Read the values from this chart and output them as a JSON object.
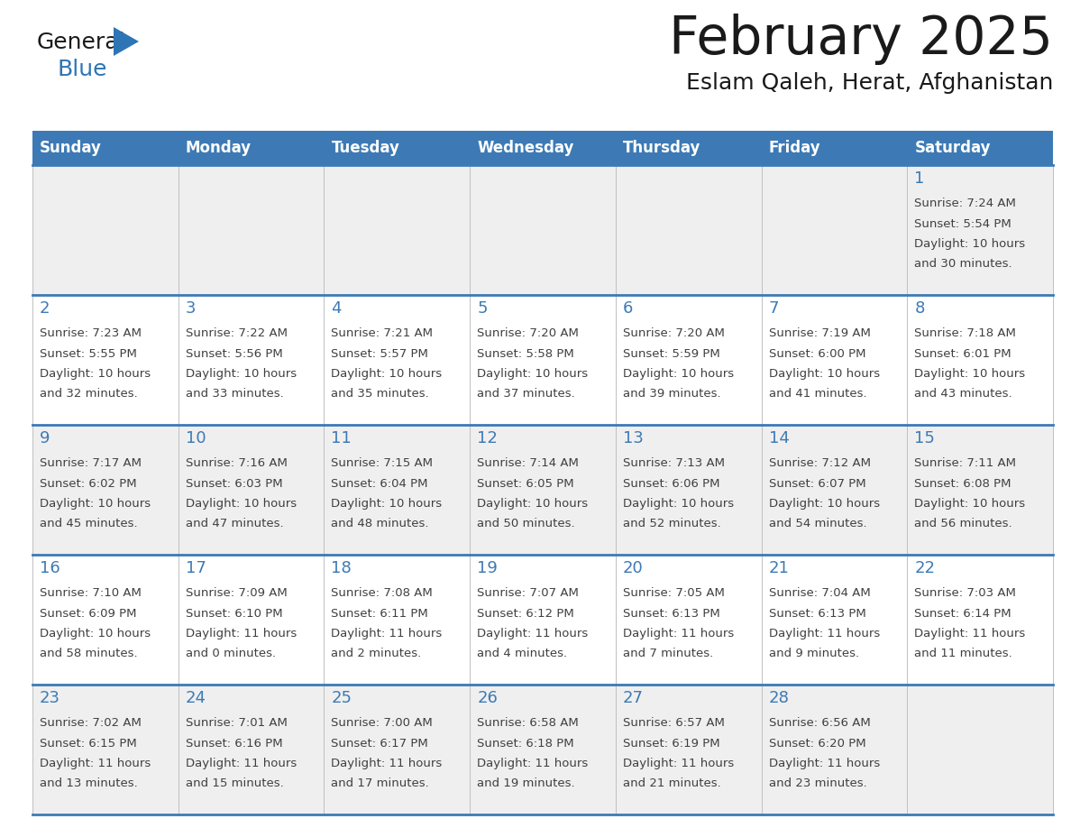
{
  "title": "February 2025",
  "subtitle": "Eslam Qaleh, Herat, Afghanistan",
  "days_of_week": [
    "Sunday",
    "Monday",
    "Tuesday",
    "Wednesday",
    "Thursday",
    "Friday",
    "Saturday"
  ],
  "header_bg": "#3d7ab5",
  "header_text": "#FFFFFF",
  "cell_bg_row0": "#efefef",
  "cell_bg_row1": "#ffffff",
  "cell_bg_row2": "#efefef",
  "cell_bg_row3": "#ffffff",
  "cell_bg_row4": "#efefef",
  "border_color": "#3d7ab5",
  "title_color": "#1a1a1a",
  "subtitle_color": "#1a1a1a",
  "day_number_color": "#3d7ab5",
  "text_color": "#404040",
  "logo_general_color": "#1a1a1a",
  "logo_blue_color": "#2E75B6",
  "fig_width": 11.88,
  "fig_height": 9.18,
  "dpi": 100,
  "calendar_data": [
    {
      "day": 1,
      "row": 0,
      "col": 6,
      "sunrise": "7:24 AM",
      "sunset": "5:54 PM",
      "daylight_h": "10 hours",
      "daylight_m": "and 30 minutes."
    },
    {
      "day": 2,
      "row": 1,
      "col": 0,
      "sunrise": "7:23 AM",
      "sunset": "5:55 PM",
      "daylight_h": "10 hours",
      "daylight_m": "and 32 minutes."
    },
    {
      "day": 3,
      "row": 1,
      "col": 1,
      "sunrise": "7:22 AM",
      "sunset": "5:56 PM",
      "daylight_h": "10 hours",
      "daylight_m": "and 33 minutes."
    },
    {
      "day": 4,
      "row": 1,
      "col": 2,
      "sunrise": "7:21 AM",
      "sunset": "5:57 PM",
      "daylight_h": "10 hours",
      "daylight_m": "and 35 minutes."
    },
    {
      "day": 5,
      "row": 1,
      "col": 3,
      "sunrise": "7:20 AM",
      "sunset": "5:58 PM",
      "daylight_h": "10 hours",
      "daylight_m": "and 37 minutes."
    },
    {
      "day": 6,
      "row": 1,
      "col": 4,
      "sunrise": "7:20 AM",
      "sunset": "5:59 PM",
      "daylight_h": "10 hours",
      "daylight_m": "and 39 minutes."
    },
    {
      "day": 7,
      "row": 1,
      "col": 5,
      "sunrise": "7:19 AM",
      "sunset": "6:00 PM",
      "daylight_h": "10 hours",
      "daylight_m": "and 41 minutes."
    },
    {
      "day": 8,
      "row": 1,
      "col": 6,
      "sunrise": "7:18 AM",
      "sunset": "6:01 PM",
      "daylight_h": "10 hours",
      "daylight_m": "and 43 minutes."
    },
    {
      "day": 9,
      "row": 2,
      "col": 0,
      "sunrise": "7:17 AM",
      "sunset": "6:02 PM",
      "daylight_h": "10 hours",
      "daylight_m": "and 45 minutes."
    },
    {
      "day": 10,
      "row": 2,
      "col": 1,
      "sunrise": "7:16 AM",
      "sunset": "6:03 PM",
      "daylight_h": "10 hours",
      "daylight_m": "and 47 minutes."
    },
    {
      "day": 11,
      "row": 2,
      "col": 2,
      "sunrise": "7:15 AM",
      "sunset": "6:04 PM",
      "daylight_h": "10 hours",
      "daylight_m": "and 48 minutes."
    },
    {
      "day": 12,
      "row": 2,
      "col": 3,
      "sunrise": "7:14 AM",
      "sunset": "6:05 PM",
      "daylight_h": "10 hours",
      "daylight_m": "and 50 minutes."
    },
    {
      "day": 13,
      "row": 2,
      "col": 4,
      "sunrise": "7:13 AM",
      "sunset": "6:06 PM",
      "daylight_h": "10 hours",
      "daylight_m": "and 52 minutes."
    },
    {
      "day": 14,
      "row": 2,
      "col": 5,
      "sunrise": "7:12 AM",
      "sunset": "6:07 PM",
      "daylight_h": "10 hours",
      "daylight_m": "and 54 minutes."
    },
    {
      "day": 15,
      "row": 2,
      "col": 6,
      "sunrise": "7:11 AM",
      "sunset": "6:08 PM",
      "daylight_h": "10 hours",
      "daylight_m": "and 56 minutes."
    },
    {
      "day": 16,
      "row": 3,
      "col": 0,
      "sunrise": "7:10 AM",
      "sunset": "6:09 PM",
      "daylight_h": "10 hours",
      "daylight_m": "and 58 minutes."
    },
    {
      "day": 17,
      "row": 3,
      "col": 1,
      "sunrise": "7:09 AM",
      "sunset": "6:10 PM",
      "daylight_h": "11 hours",
      "daylight_m": "and 0 minutes."
    },
    {
      "day": 18,
      "row": 3,
      "col": 2,
      "sunrise": "7:08 AM",
      "sunset": "6:11 PM",
      "daylight_h": "11 hours",
      "daylight_m": "and 2 minutes."
    },
    {
      "day": 19,
      "row": 3,
      "col": 3,
      "sunrise": "7:07 AM",
      "sunset": "6:12 PM",
      "daylight_h": "11 hours",
      "daylight_m": "and 4 minutes."
    },
    {
      "day": 20,
      "row": 3,
      "col": 4,
      "sunrise": "7:05 AM",
      "sunset": "6:13 PM",
      "daylight_h": "11 hours",
      "daylight_m": "and 7 minutes."
    },
    {
      "day": 21,
      "row": 3,
      "col": 5,
      "sunrise": "7:04 AM",
      "sunset": "6:13 PM",
      "daylight_h": "11 hours",
      "daylight_m": "and 9 minutes."
    },
    {
      "day": 22,
      "row": 3,
      "col": 6,
      "sunrise": "7:03 AM",
      "sunset": "6:14 PM",
      "daylight_h": "11 hours",
      "daylight_m": "and 11 minutes."
    },
    {
      "day": 23,
      "row": 4,
      "col": 0,
      "sunrise": "7:02 AM",
      "sunset": "6:15 PM",
      "daylight_h": "11 hours",
      "daylight_m": "and 13 minutes."
    },
    {
      "day": 24,
      "row": 4,
      "col": 1,
      "sunrise": "7:01 AM",
      "sunset": "6:16 PM",
      "daylight_h": "11 hours",
      "daylight_m": "and 15 minutes."
    },
    {
      "day": 25,
      "row": 4,
      "col": 2,
      "sunrise": "7:00 AM",
      "sunset": "6:17 PM",
      "daylight_h": "11 hours",
      "daylight_m": "and 17 minutes."
    },
    {
      "day": 26,
      "row": 4,
      "col": 3,
      "sunrise": "6:58 AM",
      "sunset": "6:18 PM",
      "daylight_h": "11 hours",
      "daylight_m": "and 19 minutes."
    },
    {
      "day": 27,
      "row": 4,
      "col": 4,
      "sunrise": "6:57 AM",
      "sunset": "6:19 PM",
      "daylight_h": "11 hours",
      "daylight_m": "and 21 minutes."
    },
    {
      "day": 28,
      "row": 4,
      "col": 5,
      "sunrise": "6:56 AM",
      "sunset": "6:20 PM",
      "daylight_h": "11 hours",
      "daylight_m": "and 23 minutes."
    }
  ]
}
